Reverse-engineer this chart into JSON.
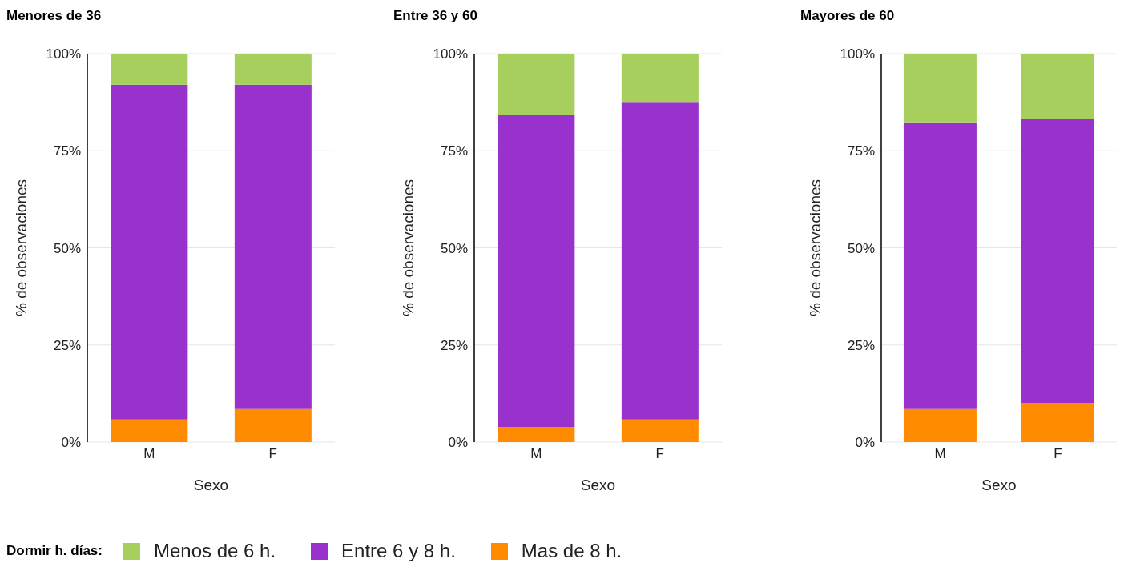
{
  "chart_data": [
    {
      "type": "bar",
      "title": "Menores de 36",
      "xlabel": "Sexo",
      "ylabel": "% de observaciones",
      "categories": [
        "M",
        "F"
      ],
      "stacked": true,
      "ylim": [
        0,
        100
      ],
      "yticks": [
        {
          "value": 0,
          "label": "0%"
        },
        {
          "value": 25,
          "label": "25%"
        },
        {
          "value": 50,
          "label": "50%"
        },
        {
          "value": 75,
          "label": "75%"
        },
        {
          "value": 100,
          "label": "100%"
        }
      ],
      "grid": "y",
      "legend": "bottom",
      "legend_title": "Dormir h. días:",
      "series": [
        {
          "name": "Mas de 8 h.",
          "color": "#ff8c00",
          "values": [
            5.8,
            8.5
          ]
        },
        {
          "name": "Entre 6 y 8 h.",
          "color": "#9932cc",
          "values": [
            86.2,
            83.5
          ]
        },
        {
          "name": "Menos de 6 h.",
          "color": "#a6cf5e",
          "values": [
            8.0,
            8.0
          ]
        }
      ]
    },
    {
      "type": "bar",
      "title": "Entre 36 y 60",
      "xlabel": "Sexo",
      "ylabel": "% de observaciones",
      "categories": [
        "M",
        "F"
      ],
      "stacked": true,
      "ylim": [
        0,
        100
      ],
      "yticks": [
        {
          "value": 0,
          "label": "0%"
        },
        {
          "value": 25,
          "label": "25%"
        },
        {
          "value": 50,
          "label": "50%"
        },
        {
          "value": 75,
          "label": "75%"
        },
        {
          "value": 100,
          "label": "100%"
        }
      ],
      "grid": "y",
      "series": [
        {
          "color": "#ff8c00",
          "values": [
            3.9,
            5.8
          ]
        },
        {
          "color": "#9932cc",
          "values": [
            80.2,
            81.8
          ]
        },
        {
          "color": "#a6cf5e",
          "values": [
            15.9,
            12.4
          ]
        }
      ]
    },
    {
      "type": "bar",
      "title": "Mayores de 60",
      "xlabel": "Sexo",
      "ylabel": "% de observaciones",
      "categories": [
        "M",
        "F"
      ],
      "stacked": true,
      "ylim": [
        0,
        100
      ],
      "yticks": [
        {
          "value": 0,
          "label": "0%"
        },
        {
          "value": 25,
          "label": "25%"
        },
        {
          "value": 50,
          "label": "50%"
        },
        {
          "value": 75,
          "label": "75%"
        },
        {
          "value": 100,
          "label": "100%"
        }
      ],
      "grid": "y",
      "series": [
        {
          "color": "#ff8c00",
          "values": [
            8.5,
            10.1
          ]
        },
        {
          "color": "#9932cc",
          "values": [
            73.8,
            73.2
          ]
        },
        {
          "color": "#a6cf5e",
          "values": [
            17.7,
            16.7
          ]
        }
      ]
    }
  ]
}
